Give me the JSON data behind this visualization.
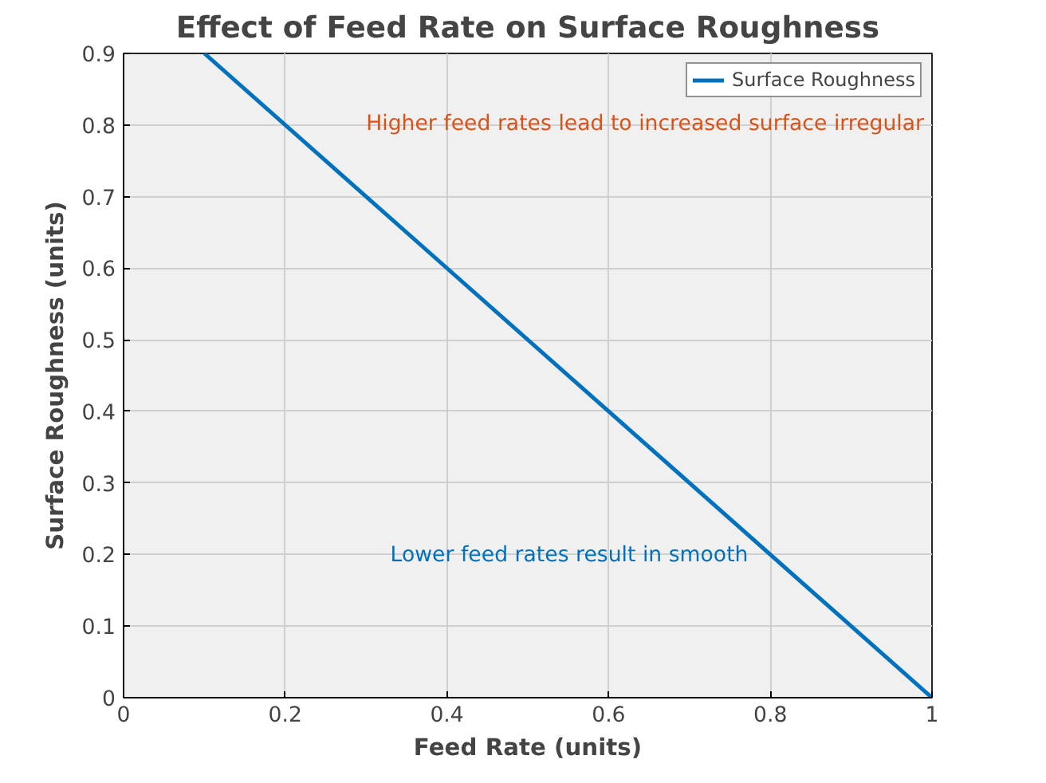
{
  "chart_data": {
    "type": "line",
    "title": "Effect of Feed Rate on Surface Roughness",
    "xlabel": "Feed Rate (units)",
    "ylabel": "Surface Roughness (units)",
    "x": [
      0.1,
      1
    ],
    "series": [
      {
        "name": "Surface Roughness",
        "color": "#0072bd",
        "values": [
          0.9,
          0
        ]
      }
    ],
    "xlim": [
      0,
      1
    ],
    "ylim": [
      0,
      0.9
    ],
    "xticks": [
      0,
      0.2,
      0.4,
      0.6,
      0.8,
      1
    ],
    "yticks": [
      0,
      0.1,
      0.2,
      0.3,
      0.4,
      0.5,
      0.6,
      0.7,
      0.8,
      0.9
    ],
    "annotations": [
      "Higher feed rates lead to increased surface irregular",
      "Lower feed rates result in smooth"
    ],
    "grid": true,
    "legend": "top right",
    "marker": "none",
    "line_style": "solid"
  }
}
